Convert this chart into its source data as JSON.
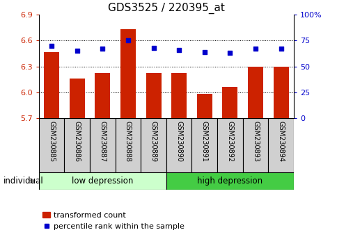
{
  "title": "GDS3525 / 220395_at",
  "categories": [
    "GSM230885",
    "GSM230886",
    "GSM230887",
    "GSM230888",
    "GSM230889",
    "GSM230890",
    "GSM230891",
    "GSM230892",
    "GSM230893",
    "GSM230894"
  ],
  "bar_values": [
    6.47,
    6.16,
    6.22,
    6.73,
    6.22,
    6.22,
    5.98,
    6.06,
    6.3,
    6.3
  ],
  "percentile_values": [
    70,
    65,
    67,
    75,
    68,
    66,
    64,
    63,
    67,
    67
  ],
  "ylim_left": [
    5.7,
    6.9
  ],
  "ylim_right": [
    0,
    100
  ],
  "yticks_left": [
    5.7,
    6.0,
    6.3,
    6.6,
    6.9
  ],
  "yticks_right": [
    0,
    25,
    50,
    75,
    100
  ],
  "ytick_labels_right": [
    "0",
    "25",
    "50",
    "75",
    "100%"
  ],
  "grid_lines": [
    6.0,
    6.3,
    6.6
  ],
  "bar_color": "#cc2200",
  "dot_color": "#0000cc",
  "low_depression_indices": [
    0,
    1,
    2,
    3,
    4
  ],
  "high_depression_indices": [
    5,
    6,
    7,
    8,
    9
  ],
  "low_label": "low depression",
  "high_label": "high depression",
  "low_color": "#ccffcc",
  "high_color": "#44cc44",
  "group_label": "individual",
  "legend_bar_label": "transformed count",
  "legend_dot_label": "percentile rank within the sample",
  "title_fontsize": 11,
  "tick_fontsize": 8,
  "label_fontsize": 8
}
